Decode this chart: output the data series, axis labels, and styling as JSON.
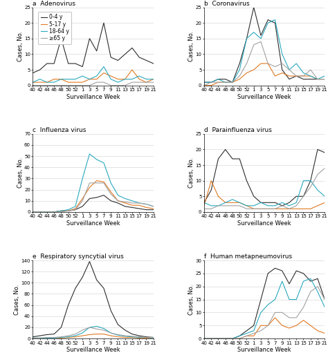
{
  "x_labels": [
    "40",
    "42",
    "44",
    "46",
    "48",
    "50",
    "52",
    "1",
    "3",
    "5",
    "7",
    "9",
    "11",
    "13",
    "15",
    "17",
    "19",
    "21"
  ],
  "x_ticks": [
    0,
    1,
    2,
    3,
    4,
    5,
    6,
    7,
    8,
    9,
    10,
    11,
    12,
    13,
    14,
    15,
    16,
    17
  ],
  "colors": {
    "age_0_4": "#2c2c2c",
    "age_5_17": "#e07820",
    "age_18_64": "#29a8be",
    "age_65plus": "#a0a0a0"
  },
  "legend_labels": [
    "0-4 y",
    "5-17 y",
    "18-64 y",
    "≥65 y"
  ],
  "panels": [
    {
      "label": "A",
      "title": "Adenovirus",
      "ylim": [
        0,
        25
      ],
      "yticks": [
        0,
        5,
        10,
        15,
        20,
        25
      ],
      "data": {
        "age_0_4": [
          4,
          5,
          7,
          7,
          15,
          7,
          7,
          6,
          15,
          11,
          20,
          9,
          8,
          10,
          12,
          9,
          8,
          7
        ],
        "age_5_17": [
          1,
          1,
          1,
          2,
          2,
          1,
          1,
          1,
          2,
          2,
          4,
          3,
          2,
          2,
          5,
          2,
          1,
          2
        ],
        "age_18_64": [
          1,
          2,
          1,
          1,
          2,
          2,
          2,
          3,
          2,
          3,
          6,
          2,
          1,
          2,
          2,
          3,
          2,
          2
        ],
        "age_65plus": [
          0,
          0,
          0,
          0,
          0,
          0,
          0,
          0,
          0,
          1,
          1,
          0,
          0,
          0,
          1,
          1,
          1,
          1
        ]
      }
    },
    {
      "label": "B",
      "title": "Coronavirus",
      "ylim": [
        0,
        25
      ],
      "yticks": [
        0,
        5,
        10,
        15,
        20,
        25
      ],
      "data": {
        "age_0_4": [
          1,
          1,
          2,
          2,
          1,
          7,
          15,
          25,
          16,
          21,
          20,
          5,
          2,
          3,
          2,
          2,
          2,
          2
        ],
        "age_5_17": [
          0,
          0,
          1,
          1,
          1,
          2,
          4,
          5,
          7,
          7,
          3,
          4,
          3,
          3,
          3,
          3,
          2,
          2
        ],
        "age_18_64": [
          1,
          1,
          2,
          1,
          1,
          5,
          15,
          17,
          15,
          20,
          21,
          10,
          5,
          7,
          4,
          3,
          2,
          3
        ],
        "age_65plus": [
          0,
          1,
          1,
          1,
          1,
          3,
          7,
          13,
          14,
          7,
          6,
          7,
          5,
          3,
          3,
          5,
          2,
          2
        ]
      }
    },
    {
      "label": "C",
      "title": "Influenza virus",
      "ylim": [
        0,
        70
      ],
      "yticks": [
        0,
        10,
        20,
        30,
        40,
        50,
        60,
        70
      ],
      "data": {
        "age_0_4": [
          0,
          0,
          0,
          0,
          1,
          1,
          2,
          5,
          12,
          13,
          15,
          10,
          8,
          5,
          4,
          3,
          2,
          2
        ],
        "age_5_17": [
          0,
          0,
          0,
          0,
          1,
          1,
          3,
          12,
          22,
          28,
          27,
          18,
          10,
          8,
          6,
          6,
          4,
          3
        ],
        "age_18_64": [
          0,
          0,
          0,
          0,
          1,
          2,
          5,
          30,
          52,
          47,
          44,
          26,
          15,
          12,
          10,
          8,
          7,
          5
        ],
        "age_65plus": [
          0,
          0,
          0,
          0,
          0,
          1,
          2,
          10,
          26,
          26,
          26,
          16,
          10,
          9,
          8,
          8,
          7,
          5
        ]
      }
    },
    {
      "label": "D",
      "title": "Parainfluenza virus",
      "ylim": [
        0,
        25
      ],
      "yticks": [
        0,
        5,
        10,
        15,
        20,
        25
      ],
      "data": {
        "age_0_4": [
          3,
          7,
          17,
          20,
          17,
          17,
          10,
          5,
          3,
          3,
          3,
          2,
          3,
          5,
          5,
          10,
          20,
          19
        ],
        "age_5_17": [
          2,
          10,
          5,
          3,
          3,
          3,
          2,
          1,
          1,
          1,
          1,
          1,
          1,
          1,
          1,
          1,
          2,
          3
        ],
        "age_18_64": [
          3,
          2,
          2,
          3,
          4,
          3,
          2,
          2,
          3,
          2,
          2,
          3,
          2,
          3,
          10,
          10,
          7,
          5
        ],
        "age_65plus": [
          1,
          1,
          2,
          2,
          2,
          2,
          1,
          1,
          1,
          1,
          1,
          2,
          1,
          2,
          5,
          8,
          12,
          14
        ]
      }
    },
    {
      "label": "E",
      "title": "Respiratory syncytial virus",
      "ylim": [
        0,
        140
      ],
      "yticks": [
        0,
        20,
        40,
        60,
        80,
        100,
        120,
        140
      ],
      "data": {
        "age_0_4": [
          3,
          5,
          7,
          8,
          20,
          60,
          90,
          110,
          138,
          105,
          90,
          50,
          25,
          15,
          8,
          5,
          3,
          2
        ],
        "age_5_17": [
          0,
          0,
          0,
          0,
          1,
          2,
          3,
          5,
          7,
          8,
          8,
          5,
          3,
          2,
          2,
          1,
          1,
          1
        ],
        "age_18_64": [
          1,
          1,
          1,
          1,
          2,
          3,
          5,
          10,
          20,
          22,
          18,
          10,
          6,
          4,
          3,
          2,
          2,
          1
        ],
        "age_65plus": [
          1,
          1,
          2,
          2,
          3,
          5,
          8,
          15,
          20,
          17,
          15,
          10,
          7,
          5,
          4,
          3,
          2,
          2
        ]
      }
    },
    {
      "label": "F",
      "title": "Human metapneumovirus",
      "ylim": [
        0,
        30
      ],
      "yticks": [
        0,
        5,
        10,
        15,
        20,
        25,
        30
      ],
      "data": {
        "age_0_4": [
          0,
          0,
          0,
          0,
          0,
          1,
          3,
          5,
          15,
          25,
          27,
          26,
          21,
          26,
          25,
          22,
          23,
          15
        ],
        "age_5_17": [
          0,
          0,
          0,
          0,
          0,
          0,
          1,
          1,
          5,
          5,
          8,
          5,
          4,
          5,
          7,
          5,
          3,
          2
        ],
        "age_18_64": [
          0,
          0,
          0,
          0,
          0,
          1,
          2,
          3,
          10,
          13,
          15,
          22,
          15,
          15,
          22,
          23,
          18,
          12
        ],
        "age_65plus": [
          0,
          0,
          0,
          0,
          0,
          0,
          1,
          2,
          3,
          5,
          10,
          10,
          8,
          8,
          12,
          18,
          20,
          15
        ]
      }
    }
  ],
  "xlabel": "Surveillance Week",
  "ylabel": "Cases, No.",
  "background_color": "#ffffff",
  "grid_color": "#d0d0d0",
  "title_fontsize": 6.5,
  "label_fontsize": 6.0,
  "tick_fontsize": 5.0,
  "legend_fontsize": 5.5
}
